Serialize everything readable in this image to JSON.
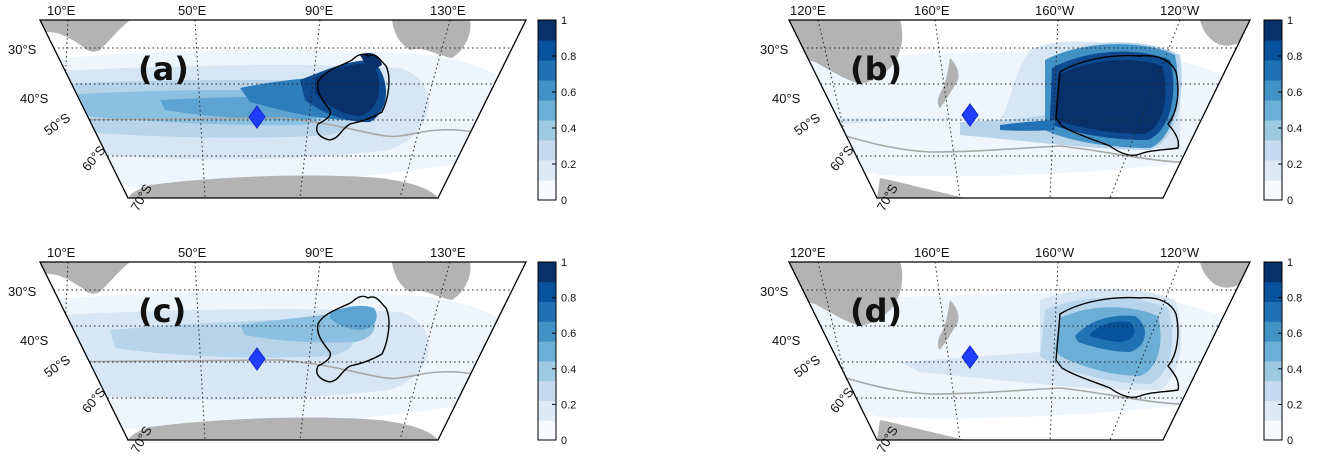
{
  "colorbar": {
    "ticks": [
      "0",
      "0.2",
      "0.4",
      "0.6",
      "0.8",
      "1"
    ],
    "colors": [
      "#f7fbff",
      "#deebf7",
      "#c6dbef",
      "#9ecae1",
      "#6baed6",
      "#4292c6",
      "#2171b5",
      "#08519c",
      "#08306b"
    ]
  },
  "map_colors": {
    "land": "#b3b3b3",
    "ocean": "#ffffff",
    "front": "#a8a8a8",
    "contour": "#000000",
    "marker": "#1f3cff"
  },
  "panels": [
    {
      "letter": "(a)",
      "lon_labels": [
        "10°E",
        "50°E",
        "90°E",
        "130°E"
      ],
      "lat_labels": [
        "30°S",
        "40°S",
        "50°S",
        "60°S",
        "70°S"
      ],
      "icons": [
        "diamond-marker-icon"
      ]
    },
    {
      "letter": "(b)",
      "lon_labels": [
        "120°E",
        "160°E",
        "160°W",
        "120°W"
      ],
      "lat_labels": [
        "30°S",
        "40°S",
        "50°S",
        "60°S",
        "70°S"
      ],
      "icons": [
        "diamond-marker-icon"
      ]
    },
    {
      "letter": "(c)",
      "lon_labels": [
        "10°E",
        "50°E",
        "90°E",
        "130°E"
      ],
      "lat_labels": [
        "30°S",
        "40°S",
        "50°S",
        "60°S",
        "70°S"
      ],
      "icons": [
        "diamond-marker-icon"
      ]
    },
    {
      "letter": "(d)",
      "lon_labels": [
        "120°E",
        "160°E",
        "160°W",
        "120°W"
      ],
      "lat_labels": [
        "30°S",
        "40°S",
        "50°S",
        "60°S",
        "70°S"
      ],
      "icons": [
        "diamond-marker-icon"
      ]
    }
  ]
}
